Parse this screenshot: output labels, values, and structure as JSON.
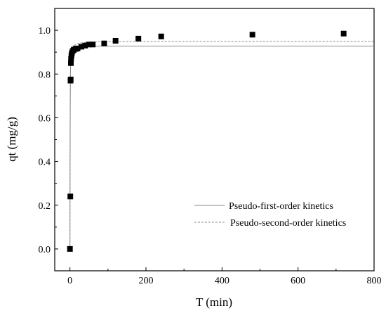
{
  "chart_data": {
    "type": "scatter",
    "xlabel": "T (min)",
    "ylabel": "qt (mg/g)",
    "xlim": [
      -40,
      800
    ],
    "ylim": [
      -0.1,
      1.1
    ],
    "x_ticks": [
      0,
      200,
      400,
      600,
      800
    ],
    "y_ticks": [
      0.0,
      0.2,
      0.4,
      0.6,
      0.8,
      1.0
    ],
    "x_tick_labels": [
      "0",
      "200",
      "400",
      "600",
      "800"
    ],
    "y_tick_labels": [
      "0.0",
      "0.2",
      "0.4",
      "0.6",
      "0.8",
      "1.0"
    ],
    "grid": false,
    "legend_position": "bottom-right",
    "scatter": {
      "marker": "square",
      "color": "#000000",
      "points": [
        [
          0,
          0.0
        ],
        [
          1,
          0.24
        ],
        [
          1.5,
          0.77
        ],
        [
          2,
          0.775
        ],
        [
          2.5,
          0.85
        ],
        [
          3,
          0.87
        ],
        [
          4,
          0.885
        ],
        [
          5,
          0.895
        ],
        [
          7,
          0.905
        ],
        [
          10,
          0.91
        ],
        [
          15,
          0.915
        ],
        [
          20,
          0.917
        ],
        [
          30,
          0.925
        ],
        [
          40,
          0.93
        ],
        [
          50,
          0.935
        ],
        [
          60,
          0.935
        ],
        [
          90,
          0.94
        ],
        [
          120,
          0.952
        ],
        [
          180,
          0.962
        ],
        [
          240,
          0.972
        ],
        [
          480,
          0.98
        ],
        [
          720,
          0.985
        ]
      ]
    },
    "series": [
      {
        "name": "Pseudo-first-order kinetics",
        "style": "solid",
        "color": "#888888",
        "qe": 0.928,
        "k": 1.4
      },
      {
        "name": "Pseudo-second-order kinetics",
        "style": "dashed",
        "color": "#888888",
        "qe": 0.95,
        "k": 4.5
      }
    ]
  }
}
